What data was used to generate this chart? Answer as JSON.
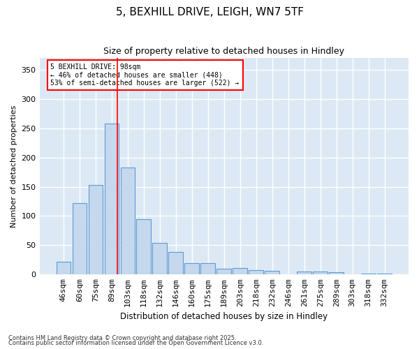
{
  "title1": "5, BEXHILL DRIVE, LEIGH, WN7 5TF",
  "title2": "Size of property relative to detached houses in Hindley",
  "xlabel": "Distribution of detached houses by size in Hindley",
  "ylabel": "Number of detached properties",
  "categories": [
    "46sqm",
    "60sqm",
    "75sqm",
    "89sqm",
    "103sqm",
    "118sqm",
    "132sqm",
    "146sqm",
    "160sqm",
    "175sqm",
    "189sqm",
    "203sqm",
    "218sqm",
    "232sqm",
    "246sqm",
    "261sqm",
    "275sqm",
    "289sqm",
    "303sqm",
    "318sqm",
    "332sqm"
  ],
  "values": [
    22,
    122,
    153,
    258,
    183,
    95,
    54,
    39,
    20,
    20,
    10,
    11,
    7,
    6,
    0,
    5,
    5,
    4,
    0,
    1,
    1
  ],
  "bar_color": "#c5d8ed",
  "bar_edge_color": "#5b9bd5",
  "background_color": "#dce9f5",
  "grid_color": "#ffffff",
  "redline_x": 3.35,
  "annotation_line1": "5 BEXHILL DRIVE: 98sqm",
  "annotation_line2": "← 46% of detached houses are smaller (448)",
  "annotation_line3": "53% of semi-detached houses are larger (522) →",
  "ylim": [
    0,
    370
  ],
  "yticks": [
    0,
    50,
    100,
    150,
    200,
    250,
    300,
    350
  ],
  "footnote1": "Contains HM Land Registry data © Crown copyright and database right 2025.",
  "footnote2": "Contains public sector information licensed under the Open Government Licence v3.0."
}
